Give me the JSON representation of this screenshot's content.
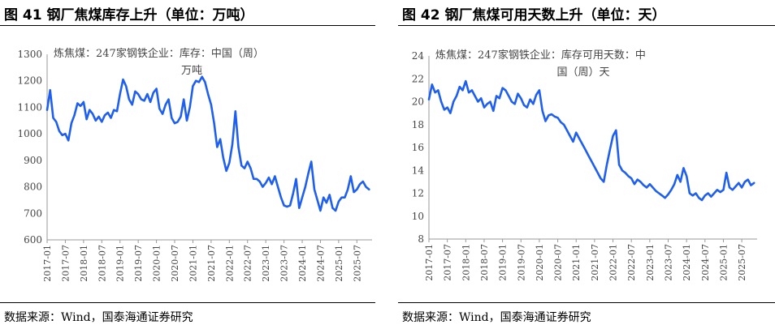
{
  "left": {
    "title": "图 41  钢厂焦煤库存上升（单位：万吨）",
    "source": "数据来源：Wind，国泰海通证券研究"
  },
  "right": {
    "title": "图 42  钢厂焦煤可用天数上升（单位：天）",
    "source": "数据来源：Wind，国泰海通证券研究"
  },
  "chart_data": [
    {
      "type": "line",
      "title": "",
      "legend": [
        "炼焦煤：247家钢铁企业：库存：中国（周）",
        "万吨"
      ],
      "legend_position": "top-left",
      "color": "#1f5ff0",
      "grid": false,
      "ylim": [
        600,
        1300
      ],
      "yticks": [
        600,
        700,
        800,
        900,
        1000,
        1100,
        1200,
        1300
      ],
      "xlim": [
        "2017-01",
        "2025-12"
      ],
      "xticks": [
        "2017-01",
        "2017-07",
        "2018-01",
        "2018-07",
        "2019-01",
        "2019-07",
        "2020-01",
        "2020-07",
        "2021-01",
        "2021-07",
        "2022-01",
        "2022-07",
        "2023-01",
        "2023-07",
        "2024-01",
        "2024-07",
        "2025-01",
        "2025-07"
      ],
      "series": [
        {
          "x": [
            "2017-01",
            "2017-02",
            "2017-03",
            "2017-04",
            "2017-05",
            "2017-06",
            "2017-07",
            "2017-08",
            "2017-09",
            "2017-10",
            "2017-11",
            "2017-12",
            "2018-01",
            "2018-02",
            "2018-03",
            "2018-04",
            "2018-05",
            "2018-06",
            "2018-07",
            "2018-08",
            "2018-09",
            "2018-10",
            "2018-11",
            "2018-12",
            "2019-01",
            "2019-02",
            "2019-03",
            "2019-04",
            "2019-05",
            "2019-06",
            "2019-07",
            "2019-08",
            "2019-09",
            "2019-10",
            "2019-11",
            "2019-12",
            "2020-01",
            "2020-02",
            "2020-03",
            "2020-04",
            "2020-05",
            "2020-06",
            "2020-07",
            "2020-08",
            "2020-09",
            "2020-10",
            "2020-11",
            "2020-12",
            "2021-01",
            "2021-02",
            "2021-03",
            "2021-04",
            "2021-05",
            "2021-06",
            "2021-07",
            "2021-08",
            "2021-09",
            "2021-10",
            "2021-11",
            "2021-12",
            "2022-01",
            "2022-02",
            "2022-03",
            "2022-04",
            "2022-05",
            "2022-06",
            "2022-07",
            "2022-08",
            "2022-09",
            "2022-10",
            "2022-11",
            "2022-12",
            "2023-01",
            "2023-02",
            "2023-03",
            "2023-04",
            "2023-05",
            "2023-06",
            "2023-07",
            "2023-08",
            "2023-09",
            "2023-10",
            "2023-11",
            "2023-12",
            "2024-01",
            "2024-02",
            "2024-03",
            "2024-04",
            "2024-05",
            "2024-06",
            "2024-07",
            "2024-08",
            "2024-09",
            "2024-10",
            "2024-11",
            "2024-12",
            "2025-01",
            "2025-02",
            "2025-03",
            "2025-04",
            "2025-05",
            "2025-06",
            "2025-07",
            "2025-08",
            "2025-09",
            "2025-10",
            "2025-11"
          ],
          "values": [
            1090,
            1165,
            1060,
            1045,
            1010,
            995,
            1000,
            975,
            1040,
            1070,
            1115,
            1105,
            1120,
            1055,
            1090,
            1075,
            1050,
            1065,
            1045,
            1070,
            1080,
            1060,
            1090,
            1085,
            1150,
            1205,
            1180,
            1130,
            1110,
            1160,
            1150,
            1130,
            1125,
            1150,
            1120,
            1155,
            1170,
            1095,
            1075,
            1110,
            1130,
            1060,
            1040,
            1045,
            1065,
            1130,
            1050,
            1100,
            1180,
            1200,
            1195,
            1215,
            1195,
            1150,
            1110,
            1040,
            950,
            980,
            910,
            860,
            890,
            960,
            1085,
            950,
            880,
            870,
            895,
            870,
            830,
            830,
            820,
            800,
            815,
            835,
            810,
            840,
            800,
            760,
            730,
            725,
            730,
            775,
            830,
            720,
            760,
            800,
            850,
            895,
            790,
            750,
            710,
            760,
            740,
            770,
            720,
            710,
            745,
            760,
            760,
            790,
            840,
            780,
            790,
            810,
            820,
            800,
            790
          ]
        }
      ]
    },
    {
      "type": "line",
      "title": "",
      "legend": [
        "炼焦煤：247家钢铁企业：库存可用天数：中",
        "国（周）天"
      ],
      "legend_position": "top-left",
      "color": "#1f5ff0",
      "grid": false,
      "ylim": [
        8,
        24
      ],
      "yticks": [
        8,
        10,
        12,
        14,
        16,
        18,
        20,
        22,
        24
      ],
      "xlim": [
        "2017-01",
        "2025-12"
      ],
      "xticks": [
        "2017-01",
        "2017-07",
        "2018-01",
        "2018-07",
        "2019-01",
        "2019-07",
        "2020-01",
        "2020-07",
        "2021-01",
        "2021-07",
        "2022-01",
        "2022-07",
        "2023-01",
        "2023-07",
        "2024-01",
        "2024-07",
        "2025-01",
        "2025-07"
      ],
      "series": [
        {
          "x": [
            "2017-01",
            "2017-02",
            "2017-03",
            "2017-04",
            "2017-05",
            "2017-06",
            "2017-07",
            "2017-08",
            "2017-09",
            "2017-10",
            "2017-11",
            "2017-12",
            "2018-01",
            "2018-02",
            "2018-03",
            "2018-04",
            "2018-05",
            "2018-06",
            "2018-07",
            "2018-08",
            "2018-09",
            "2018-10",
            "2018-11",
            "2018-12",
            "2019-01",
            "2019-02",
            "2019-03",
            "2019-04",
            "2019-05",
            "2019-06",
            "2019-07",
            "2019-08",
            "2019-09",
            "2019-10",
            "2019-11",
            "2019-12",
            "2020-01",
            "2020-02",
            "2020-03",
            "2020-04",
            "2020-05",
            "2020-06",
            "2020-07",
            "2020-08",
            "2020-09",
            "2020-10",
            "2020-11",
            "2020-12",
            "2021-01",
            "2021-02",
            "2021-03",
            "2021-04",
            "2021-05",
            "2021-06",
            "2021-07",
            "2021-08",
            "2021-09",
            "2021-10",
            "2021-11",
            "2021-12",
            "2022-01",
            "2022-02",
            "2022-03",
            "2022-04",
            "2022-05",
            "2022-06",
            "2022-07",
            "2022-08",
            "2022-09",
            "2022-10",
            "2022-11",
            "2022-12",
            "2023-01",
            "2023-02",
            "2023-03",
            "2023-04",
            "2023-05",
            "2023-06",
            "2023-07",
            "2023-08",
            "2023-09",
            "2023-10",
            "2023-11",
            "2023-12",
            "2024-01",
            "2024-02",
            "2024-03",
            "2024-04",
            "2024-05",
            "2024-06",
            "2024-07",
            "2024-08",
            "2024-09",
            "2024-10",
            "2024-11",
            "2024-12",
            "2025-01",
            "2025-02",
            "2025-03",
            "2025-04",
            "2025-05",
            "2025-06",
            "2025-07",
            "2025-08",
            "2025-09",
            "2025-10",
            "2025-11"
          ],
          "values": [
            20.2,
            21.5,
            20.8,
            21.0,
            20.0,
            19.3,
            19.5,
            19.0,
            20.0,
            20.5,
            21.3,
            21.0,
            21.8,
            20.8,
            21.0,
            20.5,
            20.0,
            20.3,
            19.5,
            19.8,
            20.0,
            19.2,
            20.5,
            20.3,
            21.2,
            21.0,
            20.5,
            20.0,
            19.8,
            20.7,
            20.3,
            19.7,
            19.5,
            20.2,
            19.8,
            20.6,
            21.0,
            19.2,
            18.3,
            18.8,
            18.9,
            18.7,
            18.6,
            18.2,
            18.0,
            17.5,
            17.0,
            16.5,
            17.3,
            16.8,
            16.3,
            15.8,
            15.3,
            14.8,
            14.3,
            13.8,
            13.3,
            13.0,
            14.5,
            15.8,
            17.0,
            17.5,
            14.5,
            14.0,
            13.8,
            13.5,
            13.3,
            12.8,
            13.2,
            13.0,
            12.7,
            12.5,
            12.8,
            12.5,
            12.2,
            12.0,
            11.8,
            11.6,
            11.9,
            12.3,
            12.8,
            13.6,
            13.0,
            14.2,
            13.5,
            12.0,
            11.8,
            12.0,
            11.6,
            11.4,
            11.8,
            12.0,
            11.7,
            12.0,
            12.3,
            12.1,
            12.3,
            13.8,
            12.5,
            12.3,
            12.6,
            12.9,
            12.5,
            13.0,
            13.2,
            12.7,
            12.9
          ]
        }
      ]
    }
  ]
}
